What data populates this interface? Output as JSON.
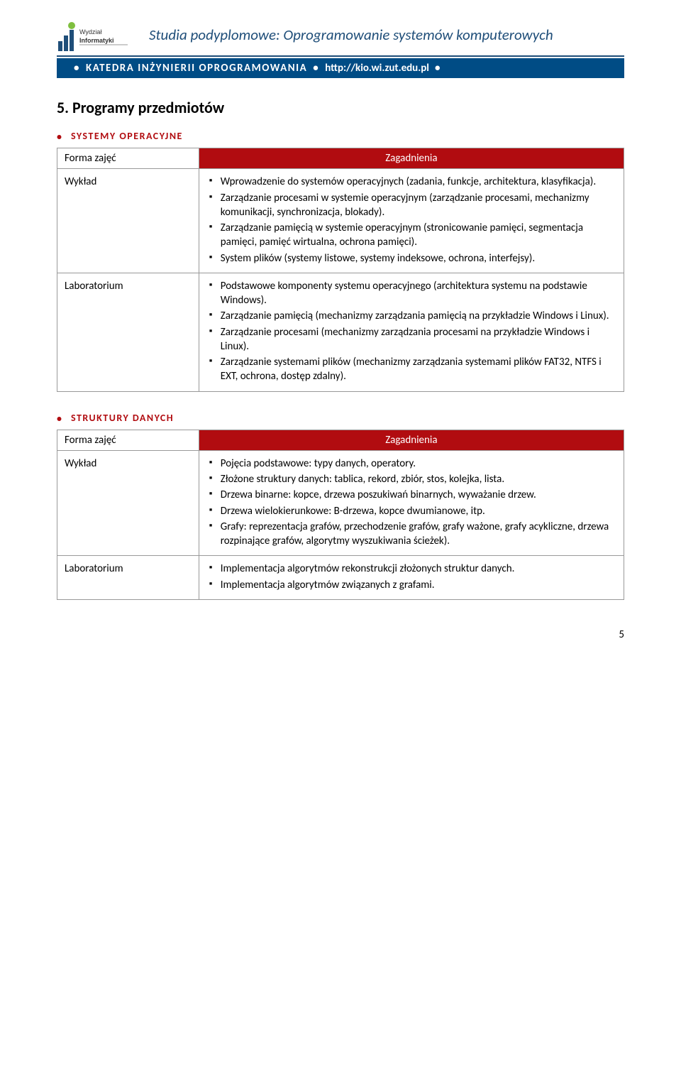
{
  "header": {
    "logo_top": "Wydział",
    "logo_bottom": "Informatyki",
    "title": "Studia podyplomowe: Oprogramowanie systemów komputerowych",
    "banner_dept": "KATEDRA INŻYNIERII OPROGRAMOWANIA",
    "banner_url": "http://kio.wi.zut.edu.pl",
    "colors": {
      "header_text": "#1f4e79",
      "banner_bg": "#004c85",
      "banner_fg": "#ffffff",
      "accent_red": "#b10c10"
    }
  },
  "section_title": "5. Programy przedmiotów",
  "col_forma": "Forma zajęć",
  "col_zag": "Zagadnienia",
  "sections": [
    {
      "heading": "SYSTEMY OPERACYJNE",
      "rows": [
        {
          "label": "Wykład",
          "items": [
            "Wprowadzenie do systemów operacyjnych (zadania, funkcje, architektura, klasyfikacja).",
            "Zarządzanie procesami w systemie operacyjnym (zarządzanie procesami, mechanizmy komunikacji, synchronizacja, blokady).",
            "Zarządzanie pamięcią w systemie operacyjnym (stronicowanie pamięci, segmentacja pamięci, pamięć wirtualna, ochrona pamięci).",
            "System plików (systemy listowe, systemy indeksowe, ochrona, interfejsy)."
          ]
        },
        {
          "label": "Laboratorium",
          "items": [
            "Podstawowe komponenty systemu operacyjnego (architektura systemu na podstawie Windows).",
            "Zarządzanie pamięcią (mechanizmy zarządzania pamięcią na przykładzie Windows i Linux).",
            "Zarządzanie procesami (mechanizmy zarządzania procesami na przykładzie Windows i Linux).",
            "Zarządzanie systemami plików (mechanizmy zarządzania systemami plików FAT32, NTFS i EXT, ochrona, dostęp zdalny)."
          ]
        }
      ]
    },
    {
      "heading": "STRUKTURY DANYCH",
      "rows": [
        {
          "label": "Wykład",
          "items": [
            "Pojęcia podstawowe: typy danych, operatory.",
            "Złożone struktury danych: tablica, rekord, zbiór, stos, kolejka, lista.",
            "Drzewa binarne: kopce, drzewa poszukiwań binarnych, wyważanie drzew.",
            "Drzewa wielokierunkowe: B-drzewa, kopce dwumianowe, itp.",
            "Grafy: reprezentacja grafów, przechodzenie grafów, grafy ważone, grafy acykliczne, drzewa rozpinające grafów, algorytmy wyszukiwania ścieżek)."
          ]
        },
        {
          "label": "Laboratorium",
          "items": [
            "Implementacja algorytmów rekonstrukcji złożonych struktur danych.",
            "Implementacja algorytmów związanych z grafami."
          ]
        }
      ]
    }
  ],
  "page_number": "5"
}
